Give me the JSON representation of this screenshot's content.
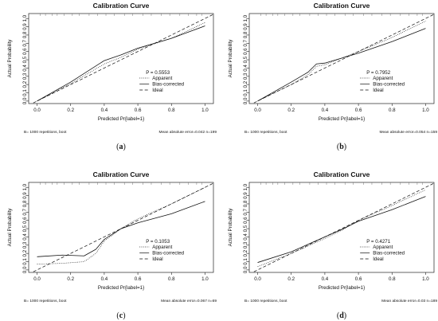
{
  "chart_data": [
    {
      "type": "line",
      "panel_label": "(a)",
      "title": "Calibration Curve",
      "xlabel": "Predicted Pr{label=1}",
      "ylabel": "Actual Probability",
      "xlim": [
        -0.05,
        1.05
      ],
      "ylim": [
        -0.03,
        1.06
      ],
      "xticks": [
        "0.0",
        "0.2",
        "0.4",
        "0.6",
        "0.8",
        "1.0"
      ],
      "yticks": [
        "0.0",
        "0.1",
        "0.2",
        "0.3",
        "0.4",
        "0.5",
        "0.6",
        "0.7",
        "0.8",
        "0.9",
        "1.0"
      ],
      "stat_text": "P = 0.5553",
      "legend": [
        "Apparent",
        "Bias-corrected",
        "Ideal"
      ],
      "footer_left": "B= 1000 repetitions, boot",
      "footer_right": "Mean absolute error=0.042 n=199",
      "series": [
        {
          "name": "Apparent",
          "style": "dotted",
          "x": [
            0.0,
            0.2,
            0.4,
            0.5,
            0.6,
            0.8,
            1.0
          ],
          "y": [
            0.0,
            0.21,
            0.45,
            0.53,
            0.63,
            0.76,
            0.95
          ]
        },
        {
          "name": "Bias-corrected",
          "style": "solid",
          "x": [
            0.0,
            0.2,
            0.4,
            0.5,
            0.6,
            0.8,
            1.0
          ],
          "y": [
            0.0,
            0.23,
            0.49,
            0.56,
            0.64,
            0.76,
            0.91
          ]
        },
        {
          "name": "Ideal",
          "style": "dashed",
          "x": [
            -0.05,
            1.05
          ],
          "y": [
            -0.05,
            1.05
          ]
        }
      ]
    },
    {
      "type": "line",
      "panel_label": "(b)",
      "title": "Calibration Curve",
      "xlabel": "Predicted Pr{label=1}",
      "ylabel": "Actual Probability",
      "xlim": [
        -0.05,
        1.05
      ],
      "ylim": [
        -0.03,
        1.06
      ],
      "xticks": [
        "0.0",
        "0.2",
        "0.4",
        "0.6",
        "0.8",
        "1.0"
      ],
      "yticks": [
        "0.0",
        "0.1",
        "0.2",
        "0.3",
        "0.4",
        "0.5",
        "0.6",
        "0.7",
        "0.8",
        "0.9",
        "1.0"
      ],
      "stat_text": "P = 0.7952",
      "legend": [
        "Apparent",
        "Bias-corrected",
        "Ideal"
      ],
      "footer_left": "B= 1000 repetitions, boot",
      "footer_right": "Mean absolute error=0.054 n=159",
      "series": [
        {
          "name": "Apparent",
          "style": "dotted",
          "x": [
            0.0,
            0.2,
            0.3,
            0.35,
            0.4,
            0.6,
            0.8,
            1.0
          ],
          "y": [
            0.0,
            0.2,
            0.32,
            0.42,
            0.44,
            0.6,
            0.77,
            0.97
          ]
        },
        {
          "name": "Bias-corrected",
          "style": "solid",
          "x": [
            0.0,
            0.2,
            0.3,
            0.35,
            0.4,
            0.6,
            0.8,
            1.0
          ],
          "y": [
            0.0,
            0.23,
            0.35,
            0.45,
            0.46,
            0.58,
            0.72,
            0.88
          ]
        },
        {
          "name": "Ideal",
          "style": "dashed",
          "x": [
            -0.05,
            1.05
          ],
          "y": [
            -0.05,
            1.05
          ]
        }
      ]
    },
    {
      "type": "line",
      "panel_label": "(c)",
      "title": "Calibration Curve",
      "xlabel": "Predicted Pr{label=1}",
      "ylabel": "Actual Probability",
      "xlim": [
        -0.05,
        1.05
      ],
      "ylim": [
        -0.03,
        1.06
      ],
      "xticks": [
        "0.0",
        "0.2",
        "0.4",
        "0.6",
        "0.8",
        "1.0"
      ],
      "yticks": [
        "0.0",
        "0.1",
        "0.2",
        "0.3",
        "0.4",
        "0.5",
        "0.6",
        "0.7",
        "0.8",
        "0.9",
        "1.0"
      ],
      "stat_text": "P = 0.1053",
      "legend": [
        "Apparent",
        "Bias-corrected",
        "Ideal"
      ],
      "footer_left": "B= 1000 repetitions, boot",
      "footer_right": "Mean absolute error=0.067 n=69",
      "series": [
        {
          "name": "Apparent",
          "style": "dotted",
          "x": [
            0.0,
            0.15,
            0.28,
            0.35,
            0.4,
            0.5,
            0.6,
            0.8,
            1.0
          ],
          "y": [
            0.07,
            0.08,
            0.1,
            0.2,
            0.35,
            0.5,
            0.62,
            0.8,
            1.0
          ]
        },
        {
          "name": "Bias-corrected",
          "style": "solid",
          "x": [
            0.0,
            0.15,
            0.28,
            0.35,
            0.4,
            0.5,
            0.6,
            0.8,
            1.0
          ],
          "y": [
            0.16,
            0.18,
            0.17,
            0.25,
            0.37,
            0.5,
            0.57,
            0.68,
            0.83
          ]
        },
        {
          "name": "Ideal",
          "style": "dashed",
          "x": [
            -0.05,
            1.05
          ],
          "y": [
            -0.05,
            1.05
          ]
        }
      ]
    },
    {
      "type": "line",
      "panel_label": "(d)",
      "title": "Calibration Curve",
      "xlabel": "Predicted Pr{label=1}",
      "ylabel": "Actual Probability",
      "xlim": [
        -0.05,
        1.05
      ],
      "ylim": [
        -0.03,
        1.06
      ],
      "xticks": [
        "0.0",
        "0.2",
        "0.4",
        "0.6",
        "0.8",
        "1.0"
      ],
      "yticks": [
        "0.0",
        "0.1",
        "0.2",
        "0.3",
        "0.4",
        "0.5",
        "0.6",
        "0.7",
        "0.8",
        "0.9",
        "1.0"
      ],
      "stat_text": "P = 0.4271",
      "legend": [
        "Apparent",
        "Bias-corrected",
        "Ideal"
      ],
      "footer_left": "B= 1000 repetitions, boot",
      "footer_right": "Mean absolute error=0.03 n=189",
      "series": [
        {
          "name": "Apparent",
          "style": "dotted",
          "x": [
            0.0,
            0.2,
            0.4,
            0.5,
            0.6,
            0.8,
            1.0
          ],
          "y": [
            0.04,
            0.2,
            0.38,
            0.48,
            0.6,
            0.78,
            0.97
          ]
        },
        {
          "name": "Bias-corrected",
          "style": "solid",
          "x": [
            0.0,
            0.2,
            0.4,
            0.5,
            0.6,
            0.8,
            1.0
          ],
          "y": [
            0.09,
            0.22,
            0.4,
            0.49,
            0.59,
            0.73,
            0.89
          ]
        },
        {
          "name": "Ideal",
          "style": "dashed",
          "x": [
            -0.05,
            1.05
          ],
          "y": [
            -0.05,
            1.05
          ]
        }
      ]
    }
  ]
}
